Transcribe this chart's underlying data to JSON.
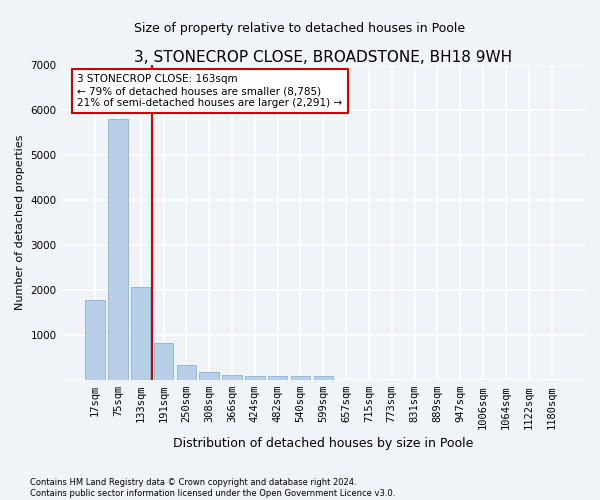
{
  "title": "3, STONECROP CLOSE, BROADSTONE, BH18 9WH",
  "subtitle": "Size of property relative to detached houses in Poole",
  "xlabel": "Distribution of detached houses by size in Poole",
  "ylabel": "Number of detached properties",
  "categories": [
    "17sqm",
    "75sqm",
    "133sqm",
    "191sqm",
    "250sqm",
    "308sqm",
    "366sqm",
    "424sqm",
    "482sqm",
    "540sqm",
    "599sqm",
    "657sqm",
    "715sqm",
    "773sqm",
    "831sqm",
    "889sqm",
    "947sqm",
    "1006sqm",
    "1064sqm",
    "1122sqm",
    "1180sqm"
  ],
  "values": [
    1780,
    5800,
    2060,
    830,
    340,
    185,
    115,
    95,
    95,
    80,
    80,
    0,
    0,
    0,
    0,
    0,
    0,
    0,
    0,
    0,
    0
  ],
  "bar_color": "#b8cfe8",
  "bar_edge_color": "#7aaad0",
  "vline_color": "#cc0000",
  "vline_x_index": 2.5,
  "annotation_text": "3 STONECROP CLOSE: 163sqm\n← 79% of detached houses are smaller (8,785)\n21% of semi-detached houses are larger (2,291) →",
  "annotation_box_color": "#ffffff",
  "annotation_box_edge": "#cc0000",
  "ylim": [
    0,
    7000
  ],
  "yticks": [
    0,
    1000,
    2000,
    3000,
    4000,
    5000,
    6000,
    7000
  ],
  "background_color": "#f0f4f8",
  "plot_bg_color": "#f0f4f8",
  "grid_color": "#ffffff",
  "footer": "Contains HM Land Registry data © Crown copyright and database right 2024.\nContains public sector information licensed under the Open Government Licence v3.0.",
  "title_fontsize": 11,
  "xlabel_fontsize": 9,
  "ylabel_fontsize": 8,
  "tick_fontsize": 7.5,
  "annotation_fontsize": 7.5,
  "footer_fontsize": 6
}
